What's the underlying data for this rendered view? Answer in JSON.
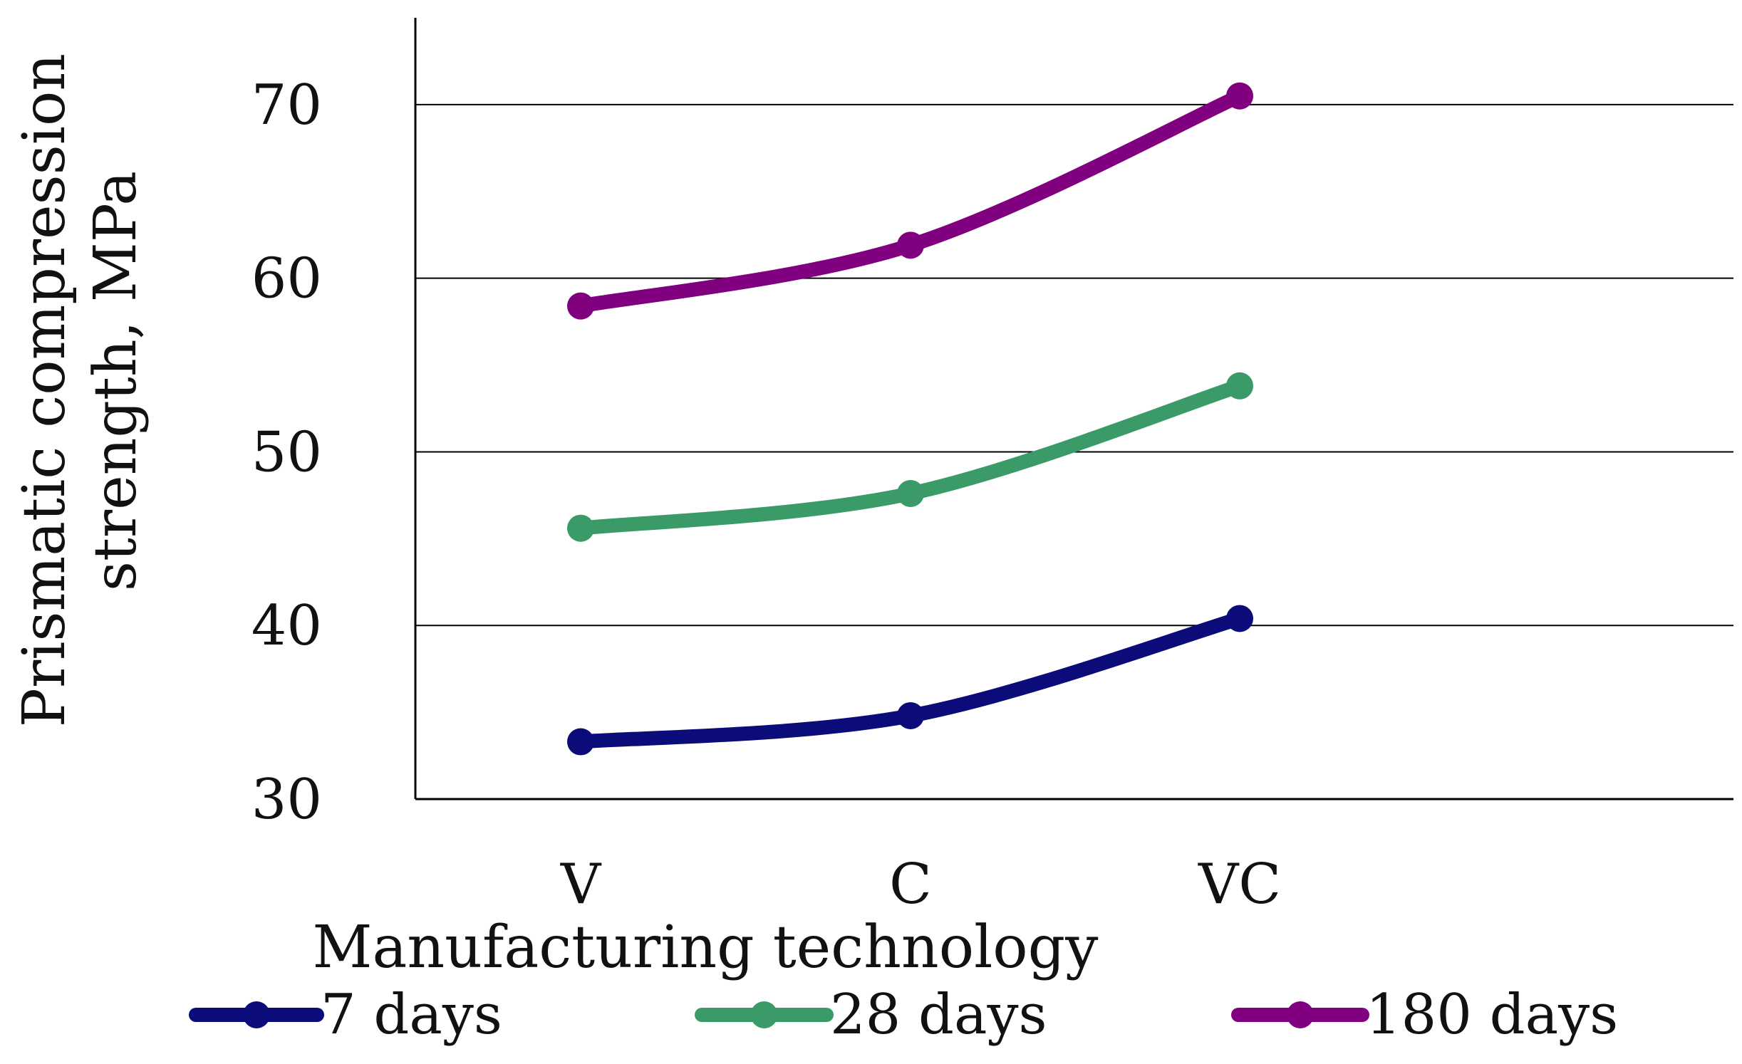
{
  "chart_data": {
    "type": "line",
    "categories": [
      "V",
      "C",
      "VC"
    ],
    "series": [
      {
        "name": "7 days",
        "values": [
          33.3,
          34.8,
          40.4
        ],
        "color": "#0b0b7a"
      },
      {
        "name": "28 days",
        "values": [
          45.6,
          47.6,
          53.8
        ],
        "color": "#3a9a68"
      },
      {
        "name": "180 days",
        "values": [
          58.4,
          61.9,
          70.5
        ],
        "color": "#800080"
      }
    ],
    "xlabel": "Manufacturing technology",
    "ylabel_lines": [
      "Prismatic compression",
      "strength, MPa"
    ],
    "ylim": [
      30,
      75
    ],
    "yticks": [
      30,
      40,
      50,
      60,
      70
    ],
    "grid": true,
    "smooth": true,
    "legend_position": "bottom"
  }
}
